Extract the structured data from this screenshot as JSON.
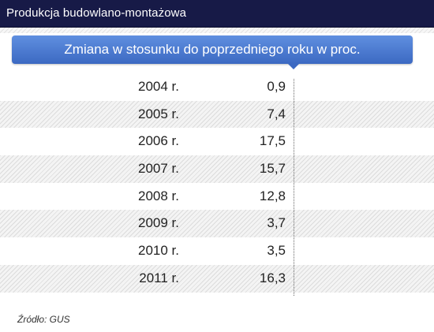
{
  "header": {
    "title": "Produkcja budowlano-montażowa"
  },
  "chart_data": {
    "type": "table",
    "title": "Produkcja budowlano-montażowa",
    "subtitle": "Zmiana w stosunku do poprzedniego roku w proc.",
    "categories": [
      "2004 r.",
      "2005 r.",
      "2006 r.",
      "2007 r.",
      "2008 r.",
      "2009 r.",
      "2010 r.",
      "2011 r."
    ],
    "values": [
      0.9,
      7.4,
      17.5,
      15.7,
      12.8,
      3.7,
      3.5,
      16.3
    ],
    "value_labels": [
      "0,9",
      "7,4",
      "17,5",
      "15,7",
      "12,8",
      "3,7",
      "3,5",
      "16,3"
    ],
    "striped_rows": [
      false,
      true,
      false,
      true,
      false,
      true,
      false,
      true
    ],
    "source": "Źródło: GUS",
    "colors": {
      "header_bg": "#171a47",
      "subtitle_bg": "#4a7ad4",
      "text": "#222222"
    }
  }
}
